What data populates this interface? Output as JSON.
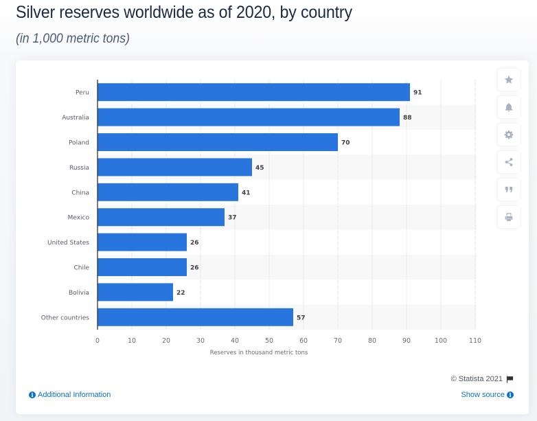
{
  "header": {
    "title": "Silver reserves worldwide as of 2020, by country",
    "subtitle": "(in 1,000 metric tons)"
  },
  "toolbar": {
    "buttons": [
      {
        "name": "favorite",
        "icon": "star-icon"
      },
      {
        "name": "notification",
        "icon": "bell-icon"
      },
      {
        "name": "settings",
        "icon": "gear-icon"
      },
      {
        "name": "share",
        "icon": "share-icon"
      },
      {
        "name": "cite",
        "icon": "quote-icon"
      },
      {
        "name": "print",
        "icon": "print-icon"
      }
    ]
  },
  "chart_data": {
    "type": "bar",
    "orientation": "horizontal",
    "title": "Silver reserves worldwide as of 2020, by country",
    "subtitle": "(in 1,000 metric tons)",
    "categories": [
      "Peru",
      "Australia",
      "Poland",
      "Russia",
      "China",
      "Mexico",
      "United States",
      "Chile",
      "Bolivia",
      "Other countries"
    ],
    "values": [
      91,
      88,
      70,
      45,
      41,
      37,
      26,
      26,
      22,
      57
    ],
    "xlabel": "Reserves in thousand metric tons",
    "ylabel": "",
    "xlim": [
      0,
      110
    ],
    "xticks": [
      0,
      10,
      20,
      30,
      40,
      50,
      60,
      70,
      80,
      90,
      100,
      110
    ],
    "grid": true,
    "data_labels": true,
    "bar_color": "#2876dd",
    "legend": "none"
  },
  "footer": {
    "copyright": "© Statista 2021",
    "additional_info": "Additional Information",
    "show_source": "Show source"
  },
  "colors": {
    "accent": "#2876dd",
    "link": "#0c72c3",
    "title": "#1b2a44"
  }
}
